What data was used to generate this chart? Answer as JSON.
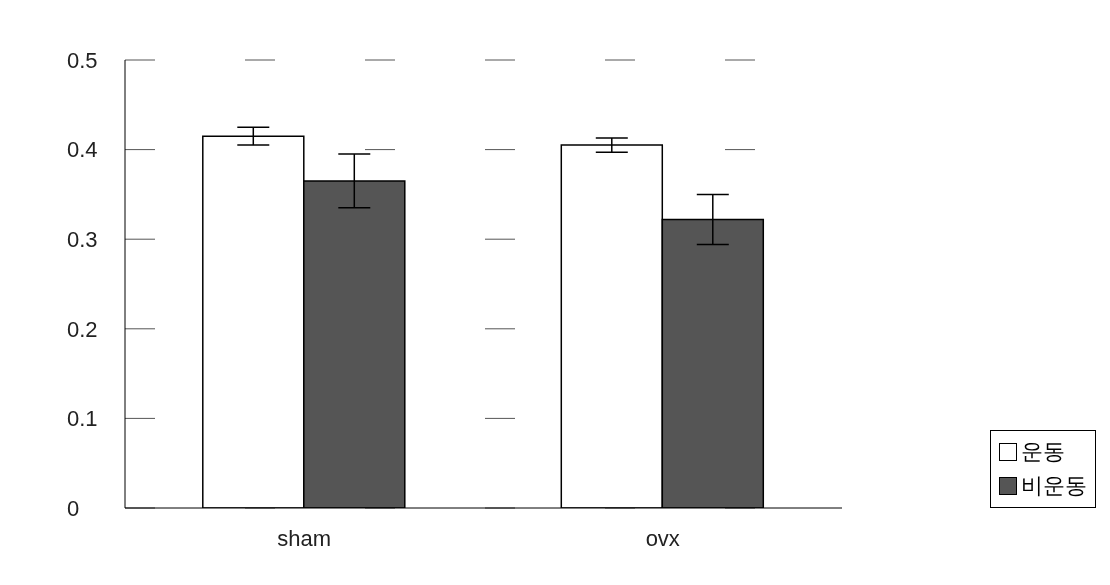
{
  "chart_data": {
    "type": "bar",
    "categories": [
      "sham",
      "ovx"
    ],
    "series": [
      {
        "name": "운동",
        "color": "#ffffff",
        "values": [
          0.415,
          0.405
        ],
        "errors": [
          0.01,
          0.008
        ]
      },
      {
        "name": "비운동",
        "color": "#555555",
        "values": [
          0.365,
          0.322
        ],
        "errors": [
          0.03,
          0.028
        ]
      }
    ],
    "ylim": [
      0,
      0.5
    ],
    "yticks": [
      0,
      0.1,
      0.2,
      0.3,
      0.4,
      0.5
    ],
    "grid": "y",
    "legend": "bottom right"
  }
}
